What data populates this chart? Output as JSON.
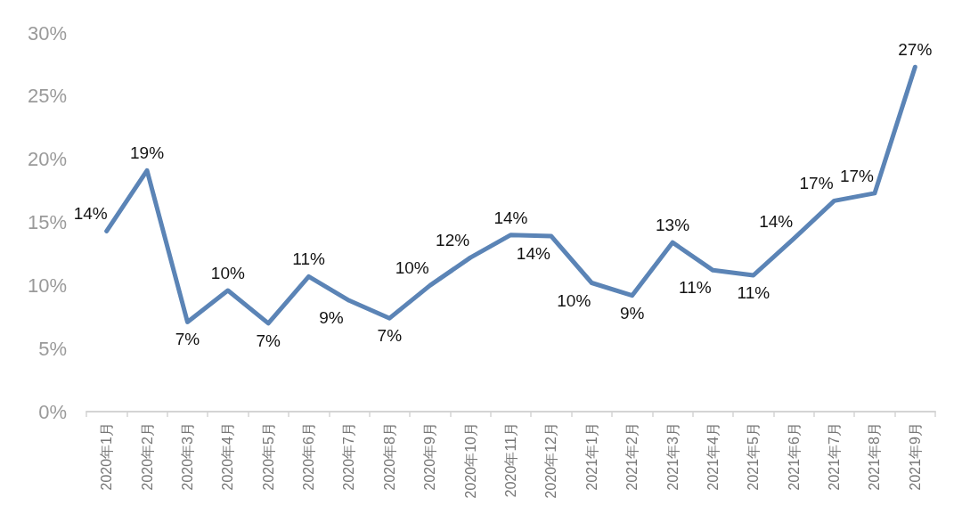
{
  "chart_data": {
    "type": "line",
    "categories": [
      "2020年1月",
      "2020年2月",
      "2020年3月",
      "2020年4月",
      "2020年5月",
      "2020年6月",
      "2020年7月",
      "2020年8月",
      "2020年9月",
      "2020年10月",
      "2020年11月",
      "2020年12月",
      "2021年1月",
      "2021年2月",
      "2021年3月",
      "2021年4月",
      "2021年5月",
      "2021年6月",
      "2021年7月",
      "2021年8月",
      "2021年9月"
    ],
    "values": [
      14.3,
      19.1,
      7.1,
      9.6,
      7.0,
      10.7,
      8.8,
      7.4,
      10.0,
      12.2,
      14.0,
      13.9,
      10.2,
      9.2,
      13.4,
      11.2,
      10.8,
      13.7,
      16.7,
      17.3,
      27.3
    ],
    "value_labels": [
      "14%",
      "19%",
      "7%",
      "10%",
      "7%",
      "11%",
      "9%",
      "7%",
      "10%",
      "12%",
      "14%",
      "14%",
      "10%",
      "9%",
      "13%",
      "11%",
      "11%",
      "14%",
      "17%",
      "17%",
      "27%"
    ],
    "color": "#5b84b6",
    "ylim": [
      0,
      30
    ],
    "yticks": [
      {
        "value": 0,
        "label": "0%"
      },
      {
        "value": 5,
        "label": "5%"
      },
      {
        "value": 10,
        "label": "10%"
      },
      {
        "value": 15,
        "label": "15%"
      },
      {
        "value": 20,
        "label": "20%"
      },
      {
        "value": 25,
        "label": "25%"
      },
      {
        "value": 30,
        "label": "30%"
      }
    ],
    "grid": false,
    "marker": "none",
    "line_style": "solid"
  }
}
